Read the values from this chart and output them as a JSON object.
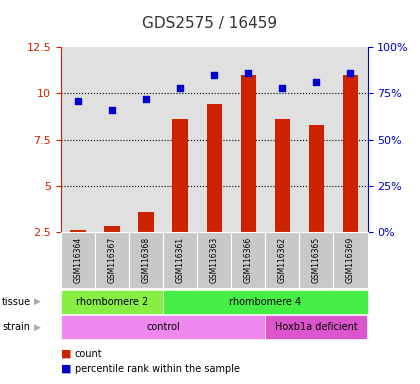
{
  "title": "GDS2575 / 16459",
  "samples": [
    "GSM116364",
    "GSM116367",
    "GSM116368",
    "GSM116361",
    "GSM116363",
    "GSM116366",
    "GSM116362",
    "GSM116365",
    "GSM116369"
  ],
  "counts": [
    2.6,
    2.85,
    3.6,
    8.6,
    9.4,
    11.0,
    8.6,
    8.3,
    11.0
  ],
  "percentiles": [
    9.6,
    9.1,
    9.7,
    10.3,
    11.0,
    11.1,
    10.3,
    10.6,
    11.1
  ],
  "ylim": [
    2.5,
    12.5
  ],
  "yticks_left": [
    2.5,
    5.0,
    7.5,
    10.0,
    12.5
  ],
  "ytick_labels_left": [
    "2.5",
    "5",
    "7.5",
    "10",
    "12.5"
  ],
  "ytick_labels_right": [
    "0%",
    "25%",
    "50%",
    "75%",
    "100%"
  ],
  "gridline_y": [
    5.0,
    7.5,
    10.0
  ],
  "bar_color": "#cc2200",
  "dot_color": "#0000cc",
  "bar_width": 0.45,
  "tissue_groups": [
    {
      "label": "rhombomere 2",
      "start": 0,
      "end": 3,
      "color": "#88ee44"
    },
    {
      "label": "rhombomere 4",
      "start": 3,
      "end": 9,
      "color": "#44ee44"
    }
  ],
  "strain_groups": [
    {
      "label": "control",
      "start": 0,
      "end": 6,
      "color": "#ee88ee"
    },
    {
      "label": "Hoxb1a deficient",
      "start": 6,
      "end": 9,
      "color": "#dd55cc"
    }
  ],
  "legend_count_label": "count",
  "legend_percentile_label": "percentile rank within the sample",
  "bg_color": "#ffffff",
  "plot_bg_color": "#e0e0e0",
  "label_color_left": "#cc2200",
  "label_color_right": "#0000cc",
  "sample_box_color": "#c8c8c8",
  "title_color": "#333333",
  "title_fontsize": 11,
  "tick_fontsize": 8,
  "label_fontsize": 7,
  "dot_size": 20
}
